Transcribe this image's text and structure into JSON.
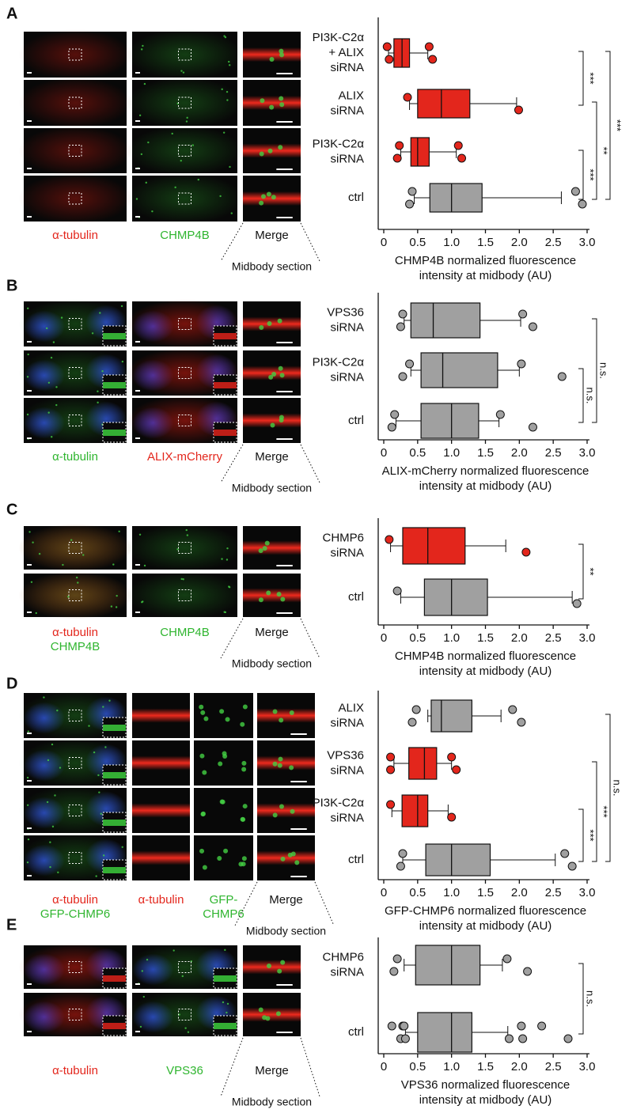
{
  "chart_data": [
    {
      "type": "box",
      "categories": [
        [
          "PI3K-C2α",
          "+ ALIX",
          "siRNA"
        ],
        [
          "ALIX",
          "siRNA"
        ],
        [
          "PI3K-C2α",
          "siRNA"
        ],
        [
          "ctrl"
        ]
      ],
      "boxes": [
        {
          "color": "#e3261c",
          "whislo": 0.07,
          "q1": 0.15,
          "med": 0.27,
          "q3": 0.38,
          "whishi": 0.65,
          "fliers": [
            0.05,
            0.08,
            0.67,
            0.72
          ]
        },
        {
          "color": "#e3261c",
          "whislo": 0.38,
          "q1": 0.5,
          "med": 0.85,
          "q3": 1.27,
          "whishi": 1.96,
          "fliers": [
            0.35,
            1.99
          ]
        },
        {
          "color": "#e3261c",
          "whislo": 0.25,
          "q1": 0.4,
          "med": 0.5,
          "q3": 0.67,
          "whishi": 1.07,
          "fliers": [
            0.23,
            0.2,
            1.1,
            1.15
          ]
        },
        {
          "color": "#a0a0a0",
          "whislo": 0.45,
          "q1": 0.68,
          "med": 1.0,
          "q3": 1.45,
          "whishi": 2.62,
          "fliers": [
            0.42,
            0.38,
            2.83,
            2.93
          ]
        }
      ],
      "xlabel": [
        "CHMP4B normalized fluorescence",
        "intensity at midbody (AU)"
      ],
      "xlim": [
        0,
        3
      ],
      "xticks": [
        0,
        0.5,
        {
          "value": 1,
          "label": "1.0"
        },
        1.5,
        {
          "value": 2,
          "label": "2.0"
        },
        2.5,
        {
          "value": 3,
          "label": "3.0"
        }
      ],
      "significance": [
        "***",
        "**",
        "***",
        "***"
      ]
    },
    {
      "type": "box",
      "categories": [
        [
          "VPS36",
          "siRNA"
        ],
        [
          "PI3K-C2α",
          "siRNA"
        ],
        [
          "ctrl"
        ]
      ],
      "boxes": [
        {
          "color": "#a0a0a0",
          "whislo": 0.3,
          "q1": 0.4,
          "med": 0.73,
          "q3": 1.42,
          "whishi": 2.02,
          "fliers": [
            0.28,
            0.25,
            2.05,
            2.2
          ]
        },
        {
          "color": "#a0a0a0",
          "whislo": 0.4,
          "q1": 0.55,
          "med": 0.87,
          "q3": 1.68,
          "whishi": 2.0,
          "fliers": [
            0.38,
            0.28,
            2.03,
            2.63
          ]
        },
        {
          "color": "#a0a0a0",
          "whislo": 0.18,
          "q1": 0.55,
          "med": 1.0,
          "q3": 1.4,
          "whishi": 1.7,
          "fliers": [
            0.16,
            0.12,
            1.72,
            2.2
          ]
        }
      ],
      "xlabel": [
        "ALIX-mCherry normalized fluorescence",
        "intensity at midbody (AU)"
      ],
      "xlim": [
        0,
        3
      ],
      "xticks": [
        0,
        0.5,
        {
          "value": 1,
          "label": "1.0"
        },
        1.5,
        {
          "value": 2,
          "label": "2.0"
        },
        2.5,
        {
          "value": 3,
          "label": "3.0"
        }
      ],
      "significance": [
        "n.s.",
        "n.s."
      ]
    },
    {
      "type": "box",
      "categories": [
        [
          "CHMP6",
          "siRNA"
        ],
        [
          "ctrl"
        ]
      ],
      "boxes": [
        {
          "color": "#e3261c",
          "whislo": 0.1,
          "q1": 0.28,
          "med": 0.65,
          "q3": 1.2,
          "whishi": 1.8,
          "fliers": [
            0.08,
            2.1
          ]
        },
        {
          "color": "#a0a0a0",
          "whislo": 0.25,
          "q1": 0.6,
          "med": 1.0,
          "q3": 1.53,
          "whishi": 2.78,
          "fliers": [
            0.2,
            2.85
          ]
        }
      ],
      "xlabel": [
        "CHMP4B normalized fluorescence",
        "intensity at midbody (AU)"
      ],
      "xlim": [
        0,
        3
      ],
      "xticks": [
        0,
        0.5,
        {
          "value": 1,
          "label": "1.0"
        },
        1.5,
        {
          "value": 2,
          "label": "2.0"
        },
        2.5,
        {
          "value": 3,
          "label": "3.0"
        }
      ],
      "significance": [
        "**"
      ]
    },
    {
      "type": "box",
      "categories": [
        [
          "ALIX",
          "siRNA"
        ],
        [
          "VPS36",
          "siRNA"
        ],
        [
          "PI3K-C2α",
          "siRNA"
        ],
        [
          "ctrl"
        ]
      ],
      "boxes": [
        {
          "color": "#a0a0a0",
          "whislo": 0.65,
          "q1": 0.7,
          "med": 0.85,
          "q3": 1.3,
          "whishi": 1.73,
          "fliers": [
            0.48,
            0.42,
            1.9,
            2.03
          ]
        },
        {
          "color": "#e3261c",
          "whislo": 0.15,
          "q1": 0.37,
          "med": 0.6,
          "q3": 0.78,
          "whishi": 1.0,
          "fliers": [
            0.1,
            0.1,
            1.0,
            1.07
          ]
        },
        {
          "color": "#e3261c",
          "whislo": 0.12,
          "q1": 0.27,
          "med": 0.5,
          "q3": 0.65,
          "whishi": 0.95,
          "fliers": [
            0.1,
            1.0
          ]
        },
        {
          "color": "#a0a0a0",
          "whislo": 0.28,
          "q1": 0.62,
          "med": 1.0,
          "q3": 1.57,
          "whishi": 2.53,
          "fliers": [
            0.28,
            0.25,
            2.67,
            2.78
          ]
        }
      ],
      "xlabel": [
        "GFP-CHMP6 normalized fluorescence",
        "intensity at midbody (AU)"
      ],
      "xlim": [
        0,
        3
      ],
      "xticks": [
        0,
        0.5,
        {
          "value": 1,
          "label": "1.0"
        },
        1.5,
        {
          "value": 2,
          "label": "2.0"
        },
        2.5,
        {
          "value": 3,
          "label": "3.0"
        }
      ],
      "significance": [
        "***",
        "***",
        "n.s."
      ]
    },
    {
      "type": "box",
      "categories": [
        [
          "CHMP6",
          "siRNA"
        ],
        [
          "ctrl"
        ]
      ],
      "boxes": [
        {
          "color": "#a0a0a0",
          "whislo": 0.3,
          "q1": 0.47,
          "med": 1.0,
          "q3": 1.42,
          "whishi": 1.75,
          "fliers": [
            0.2,
            0.15,
            1.82,
            2.12
          ]
        },
        {
          "color": "#a0a0a0",
          "whislo": 0.32,
          "q1": 0.5,
          "med": 1.0,
          "q3": 1.3,
          "whishi": 1.83,
          "fliers": [
            0.12,
            0.25,
            0.28,
            0.32,
            0.3,
            1.85,
            2.03,
            2.05,
            2.33,
            2.72
          ]
        }
      ],
      "xlabel": [
        "VPS36 normalized fluorescence",
        "intensity at midbody (AU)"
      ],
      "xlim": [
        0,
        3
      ],
      "xticks": [
        0,
        0.5,
        {
          "value": 1,
          "label": "1.0"
        },
        1.5,
        {
          "value": 2,
          "label": "2.0"
        },
        2.5,
        {
          "value": 3,
          "label": "3.0"
        }
      ],
      "significance": [
        "n.s."
      ]
    }
  ],
  "images": [
    {
      "letter": "A",
      "section": "Midbody section",
      "labels": [
        [
          {
            "text": "α-tubulin",
            "color": "#e3261c"
          }
        ],
        [
          {
            "text": "CHMP4B",
            "color": "#2fb52f"
          }
        ],
        [
          {
            "text": "Merge",
            "color": "#111111"
          }
        ]
      ]
    },
    {
      "letter": "B",
      "section": "Midbody section",
      "labels": [
        [
          {
            "text": "α-tubulin",
            "color": "#2fb52f"
          }
        ],
        [
          {
            "text": "ALIX-mCherry",
            "color": "#e3261c"
          }
        ],
        [
          {
            "text": "Merge",
            "color": "#111111"
          }
        ]
      ]
    },
    {
      "letter": "C",
      "section": "Midbody section",
      "labels": [
        [
          {
            "text": "α-tubulin",
            "color": "#e3261c"
          },
          {
            "text": "CHMP4B",
            "color": "#2fb52f"
          }
        ],
        [
          {
            "text": "CHMP4B",
            "color": "#2fb52f"
          }
        ],
        [
          {
            "text": "Merge",
            "color": "#111111"
          }
        ]
      ]
    },
    {
      "letter": "D",
      "section": "Midbody section",
      "labels": [
        [
          {
            "text": "α-tubulin",
            "color": "#e3261c"
          },
          {
            "text": "GFP-CHMP6",
            "color": "#2fb52f"
          }
        ],
        [
          {
            "text": "α-tubulin",
            "color": "#e3261c"
          }
        ],
        [
          {
            "text": "GFP-",
            "color": "#2fb52f"
          },
          {
            "text": "CHMP6",
            "color": "#2fb52f"
          }
        ],
        [
          {
            "text": "Merge",
            "color": "#111111"
          }
        ]
      ]
    },
    {
      "letter": "E",
      "section": "Midbody section",
      "labels": [
        [
          {
            "text": "α-tubulin",
            "color": "#e3261c"
          }
        ],
        [
          {
            "text": "VPS36",
            "color": "#2fb52f"
          }
        ],
        [
          {
            "text": "Merge",
            "color": "#111111"
          }
        ]
      ]
    }
  ]
}
